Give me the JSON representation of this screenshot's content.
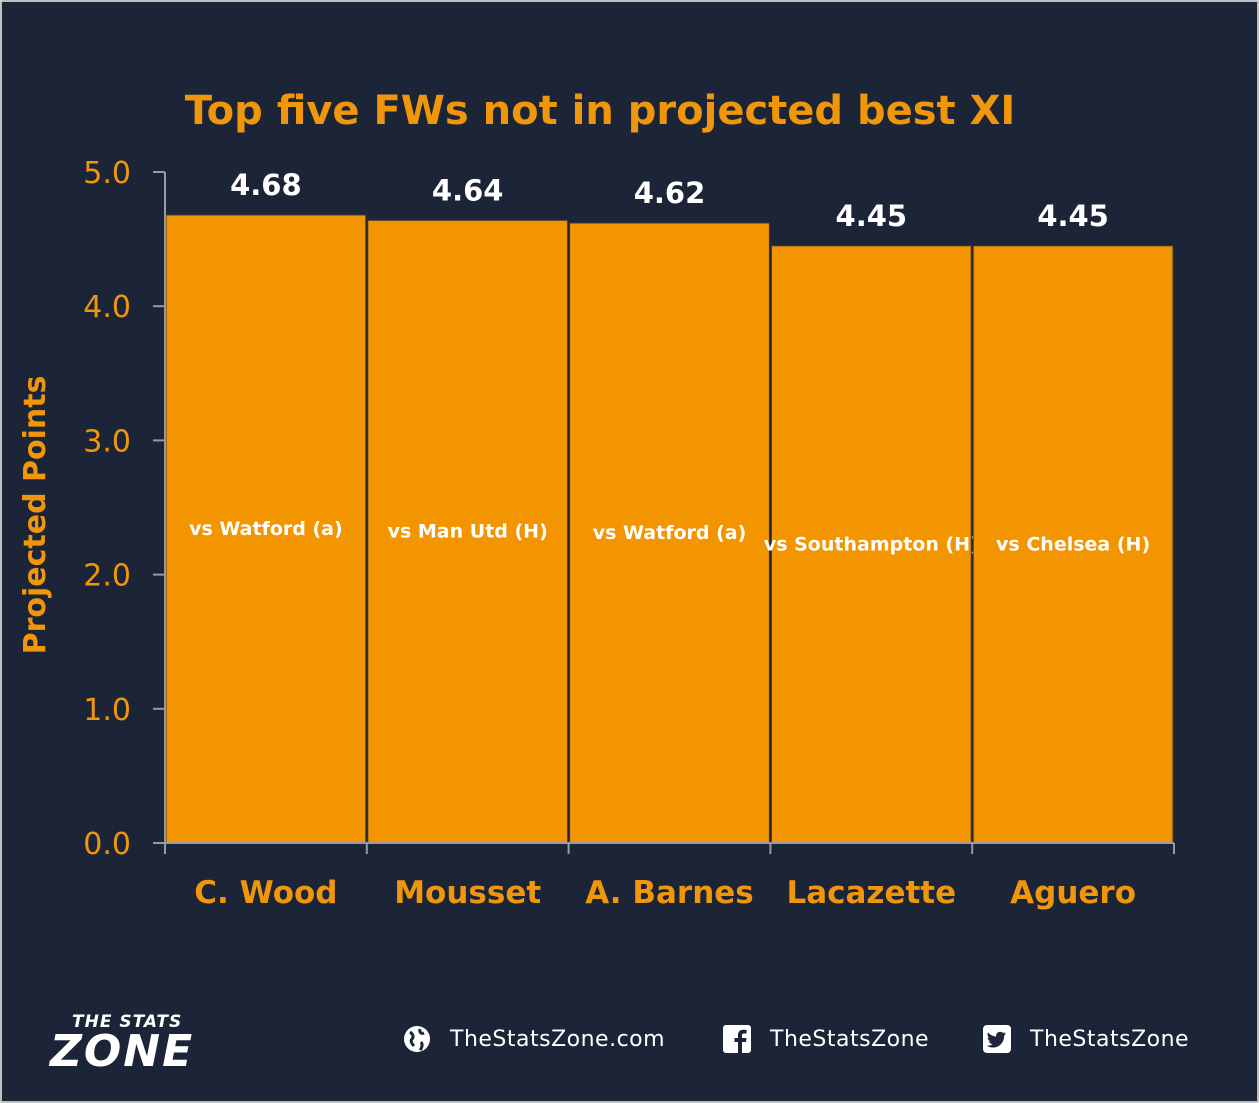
{
  "colors": {
    "background": "#1c2438",
    "accent": "#f0960a",
    "bar": "#f29500",
    "text": "#ffffff"
  },
  "chart_data": {
    "type": "bar",
    "title": "Top five FWs not in projected best XI",
    "xlabel": "",
    "ylabel": "Projected Points",
    "ylim": [
      0,
      5
    ],
    "yticks": [
      "0.0",
      "1.0",
      "2.0",
      "3.0",
      "4.0",
      "5.0"
    ],
    "categories": [
      "C. Wood",
      "Mousset",
      "A. Barnes",
      "Lacazette",
      "Aguero"
    ],
    "values": [
      4.68,
      4.64,
      4.62,
      4.45,
      4.45
    ],
    "value_labels": [
      "4.68",
      "4.64",
      "4.62",
      "4.45",
      "4.45"
    ],
    "fixtures": [
      "vs Watford (a)",
      "vs Man Utd (H)",
      "vs Watford (a)",
      "vs Southampton (H)",
      "vs Chelsea (H)"
    ],
    "grid": false,
    "legend": "none"
  },
  "footer": {
    "logo_top": "THE STATS",
    "logo_main": "ZONE",
    "website": "TheStatsZone.com",
    "facebook": "TheStatsZone",
    "twitter": "TheStatsZone",
    "website_icon": "globe-icon",
    "facebook_icon": "facebook-icon",
    "twitter_icon": "twitter-icon"
  }
}
